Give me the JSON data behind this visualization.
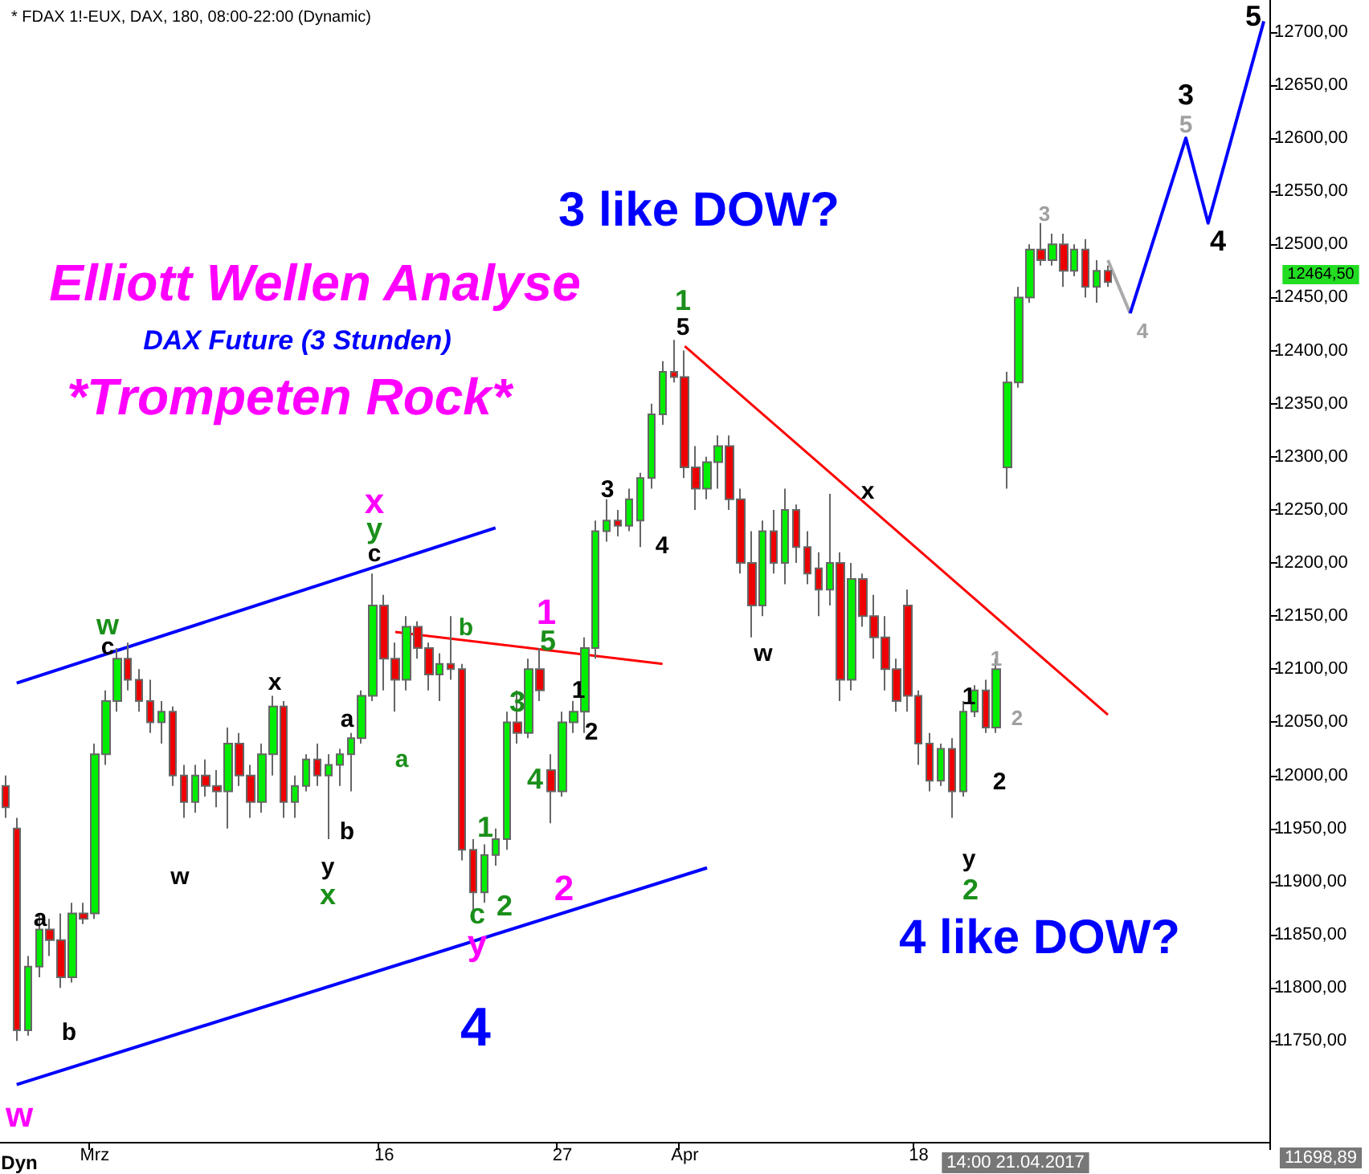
{
  "chart_data": {
    "type": "candlestick",
    "title": "* FDAX 1!-EUX, DAX, 180, 08:00-22:00 (Dynamic)",
    "categories": [
      null,
      null,
      null,
      null,
      null,
      null,
      null,
      null,
      "Mrz",
      null,
      null,
      null,
      null,
      null,
      null,
      null,
      null,
      null,
      null,
      null,
      null,
      null,
      null,
      null,
      null,
      null,
      null,
      null,
      null,
      null,
      null,
      null,
      null,
      null,
      "16",
      null,
      null,
      null,
      null,
      null,
      null,
      null,
      null,
      null,
      null,
      null,
      null,
      null,
      null,
      null,
      "27",
      null,
      null,
      null,
      null,
      null,
      null,
      null,
      null,
      null,
      null,
      "Apr",
      null,
      null,
      null,
      null,
      null,
      null,
      null,
      null,
      null,
      null,
      null,
      null,
      null,
      null,
      null,
      null,
      null,
      null,
      null,
      null,
      "18",
      null,
      null,
      null,
      null,
      null,
      null,
      null,
      null,
      null,
      null,
      null,
      null,
      null,
      null,
      null,
      null,
      null,
      null,
      null,
      null,
      null,
      null,
      null,
      null,
      null,
      null,
      null,
      null,
      null,
      null,
      null
    ],
    "ohlc": [
      [
        11990,
        12000,
        11960,
        11970
      ],
      [
        11950,
        11960,
        11750,
        11760
      ],
      [
        11760,
        11830,
        11755,
        11820
      ],
      [
        11820,
        11870,
        11810,
        11855
      ],
      [
        11855,
        11865,
        11830,
        11845
      ],
      [
        11845,
        11870,
        11800,
        11810
      ],
      [
        11810,
        11880,
        11805,
        11870
      ],
      [
        11870,
        11880,
        11860,
        11865
      ],
      [
        11870,
        12030,
        11865,
        12020
      ],
      [
        12020,
        12080,
        12010,
        12070
      ],
      [
        12070,
        12120,
        12060,
        12110
      ],
      [
        12110,
        12125,
        12080,
        12090
      ],
      [
        12090,
        12100,
        12060,
        12070
      ],
      [
        12070,
        12090,
        12040,
        12050
      ],
      [
        12050,
        12070,
        12030,
        12060
      ],
      [
        12060,
        12065,
        11990,
        12000
      ],
      [
        12000,
        12010,
        11960,
        11975
      ],
      [
        11975,
        12010,
        11965,
        12000
      ],
      [
        12000,
        12015,
        11980,
        11990
      ],
      [
        11990,
        12005,
        11970,
        11985
      ],
      [
        11985,
        12045,
        11950,
        12030
      ],
      [
        12030,
        12040,
        11990,
        12000
      ],
      [
        12000,
        12010,
        11960,
        11975
      ],
      [
        11975,
        12030,
        11965,
        12020
      ],
      [
        12020,
        12075,
        12000,
        12065
      ],
      [
        12065,
        12070,
        11960,
        11975
      ],
      [
        11975,
        12000,
        11960,
        11990
      ],
      [
        11990,
        12020,
        11985,
        12015
      ],
      [
        12015,
        12030,
        11990,
        12000
      ],
      [
        12000,
        12020,
        11940,
        12010
      ],
      [
        12010,
        12025,
        11990,
        12020
      ],
      [
        12020,
        12040,
        11985,
        12035
      ],
      [
        12035,
        12080,
        12030,
        12075
      ],
      [
        12075,
        12190,
        12070,
        12160
      ],
      [
        12160,
        12170,
        12080,
        12110
      ],
      [
        12110,
        12125,
        12060,
        12090
      ],
      [
        12090,
        12150,
        12080,
        12140
      ],
      [
        12140,
        12145,
        12110,
        12120
      ],
      [
        12120,
        12125,
        12080,
        12095
      ],
      [
        12095,
        12115,
        12070,
        12105
      ],
      [
        12105,
        12150,
        12090,
        12100
      ],
      [
        12100,
        12105,
        11920,
        11930
      ],
      [
        11930,
        11940,
        11870,
        11890
      ],
      [
        11890,
        11935,
        11880,
        11925
      ],
      [
        11925,
        11950,
        11915,
        11940
      ],
      [
        11940,
        12060,
        11930,
        12050
      ],
      [
        12050,
        12080,
        12030,
        12040
      ],
      [
        12040,
        12110,
        12035,
        12100
      ],
      [
        12100,
        12120,
        12070,
        12080
      ],
      [
        12005,
        12020,
        11955,
        11985
      ],
      [
        11985,
        12060,
        11980,
        12050
      ],
      [
        12050,
        12070,
        12040,
        12060
      ],
      [
        12060,
        12130,
        12040,
        12120
      ],
      [
        12120,
        12240,
        12110,
        12230
      ],
      [
        12230,
        12260,
        12220,
        12240
      ],
      [
        12240,
        12250,
        12225,
        12235
      ],
      [
        12235,
        12270,
        12230,
        12260
      ],
      [
        12240,
        12285,
        12215,
        12280
      ],
      [
        12280,
        12350,
        12270,
        12340
      ],
      [
        12340,
        12390,
        12330,
        12380
      ],
      [
        12380,
        12410,
        12370,
        12375
      ],
      [
        12375,
        12400,
        12280,
        12290
      ],
      [
        12290,
        12310,
        12250,
        12270
      ],
      [
        12270,
        12300,
        12260,
        12295
      ],
      [
        12295,
        12320,
        12270,
        12310
      ],
      [
        12310,
        12320,
        12250,
        12260
      ],
      [
        12260,
        12270,
        12190,
        12200
      ],
      [
        12200,
        12230,
        12130,
        12160
      ],
      [
        12160,
        12240,
        12150,
        12230
      ],
      [
        12230,
        12250,
        12190,
        12200
      ],
      [
        12200,
        12270,
        12180,
        12250
      ],
      [
        12250,
        12255,
        12200,
        12215
      ],
      [
        12215,
        12230,
        12180,
        12190
      ],
      [
        12195,
        12210,
        12150,
        12175
      ],
      [
        12175,
        12265,
        12160,
        12200
      ],
      [
        12200,
        12210,
        12070,
        12090
      ],
      [
        12090,
        12200,
        12080,
        12185
      ],
      [
        12185,
        12190,
        12140,
        12150
      ],
      [
        12150,
        12170,
        12110,
        12130
      ],
      [
        12130,
        12150,
        12080,
        12100
      ],
      [
        12100,
        12110,
        12060,
        12070
      ],
      [
        12160,
        12175,
        12060,
        12075
      ],
      [
        12075,
        12080,
        12010,
        12030
      ],
      [
        12030,
        12040,
        11985,
        11995
      ],
      [
        11995,
        12030,
        11990,
        12025
      ],
      [
        12025,
        12035,
        11960,
        11985
      ],
      [
        11985,
        12070,
        11980,
        12060
      ],
      [
        12060,
        12085,
        12055,
        12080
      ],
      [
        12080,
        12090,
        12040,
        12045
      ],
      [
        12045,
        12110,
        12040,
        12100
      ],
      [
        12290,
        12380,
        12270,
        12370
      ],
      [
        12370,
        12460,
        12365,
        12450
      ],
      [
        12450,
        12500,
        12445,
        12495
      ],
      [
        12495,
        12520,
        12480,
        12485
      ],
      [
        12485,
        12510,
        12480,
        12500
      ],
      [
        12500,
        12510,
        12460,
        12475
      ],
      [
        12475,
        12500,
        12470,
        12495
      ],
      [
        12495,
        12505,
        12450,
        12460
      ],
      [
        12460,
        12485,
        12445,
        12475
      ],
      [
        12475,
        12480,
        12460,
        12464.5
      ],
      null,
      null,
      null,
      null,
      null,
      null,
      null,
      null,
      null,
      null,
      null,
      null,
      null,
      null
    ],
    "series": [
      {
        "type": "line",
        "color": "#0000ff",
        "values": [
          null,
          11709,
          null,
          null,
          null,
          null,
          null,
          null,
          null,
          null,
          null,
          null,
          null,
          null,
          null,
          null,
          null,
          null,
          null,
          null,
          null,
          null,
          null,
          null,
          null,
          null,
          null,
          null,
          null,
          null,
          null,
          null,
          null,
          null,
          null,
          null,
          null,
          null,
          null,
          null,
          null,
          null,
          null,
          null,
          null,
          null,
          null,
          null,
          null,
          null,
          null,
          null,
          null,
          null,
          null,
          null,
          null,
          null,
          null,
          null,
          null,
          null,
          null,
          11913,
          null,
          null,
          null,
          null,
          null,
          null,
          null,
          null,
          null,
          null,
          null,
          null,
          null,
          null,
          null,
          null,
          null,
          null,
          null,
          null,
          null,
          null,
          null,
          null,
          null,
          null,
          null,
          null,
          null,
          null,
          null,
          null,
          null,
          null,
          null,
          null,
          null,
          null,
          null,
          null,
          null,
          null,
          null,
          null,
          null,
          null,
          null,
          null,
          null,
          null
        ]
      },
      {
        "type": "line",
        "color": "#0000ff",
        "values": [
          null,
          12087,
          null,
          null,
          null,
          null,
          null,
          null,
          null,
          null,
          null,
          null,
          null,
          null,
          null,
          null,
          null,
          null,
          null,
          null,
          null,
          null,
          null,
          null,
          null,
          null,
          null,
          null,
          null,
          null,
          null,
          null,
          null,
          null,
          null,
          null,
          null,
          null,
          null,
          null,
          null,
          null,
          null,
          null,
          12233,
          null,
          null,
          null,
          null,
          null,
          null,
          null,
          null,
          null,
          null,
          null,
          null,
          null,
          null,
          null,
          null,
          null,
          null,
          null,
          null,
          null,
          null,
          null,
          null,
          null,
          null,
          null,
          null,
          null,
          null,
          null,
          null,
          null,
          null,
          null,
          null,
          null,
          null,
          null,
          null,
          null,
          null,
          null,
          null,
          null,
          null,
          null,
          null,
          null,
          null,
          null,
          null,
          null,
          null,
          null,
          null,
          null,
          null,
          null,
          null,
          null,
          null,
          null,
          null,
          null,
          null,
          null,
          null,
          null
        ]
      },
      {
        "type": "line",
        "color": "#ff0000",
        "values": [
          null,
          null,
          null,
          null,
          null,
          null,
          null,
          null,
          null,
          null,
          null,
          null,
          null,
          null,
          null,
          null,
          null,
          null,
          null,
          null,
          null,
          null,
          null,
          null,
          null,
          null,
          null,
          null,
          null,
          null,
          null,
          null,
          null,
          null,
          null,
          12135,
          null,
          null,
          null,
          null,
          null,
          null,
          null,
          null,
          null,
          null,
          null,
          null,
          null,
          null,
          null,
          null,
          null,
          null,
          null,
          null,
          null,
          null,
          null,
          12105,
          null,
          null,
          null,
          null,
          null,
          null,
          null,
          null,
          null,
          null,
          null,
          null,
          null,
          null,
          null,
          null,
          null,
          null,
          null,
          null,
          null,
          null,
          null,
          null,
          null,
          null,
          null,
          null,
          null,
          null,
          null,
          null,
          null,
          null,
          null,
          null,
          null,
          null,
          null,
          null,
          null,
          null,
          null,
          null,
          null,
          null,
          null,
          null,
          null,
          null,
          null,
          null,
          null,
          null
        ]
      },
      {
        "type": "line",
        "color": "#ff0000",
        "values": [
          null,
          null,
          null,
          null,
          null,
          null,
          null,
          null,
          null,
          null,
          null,
          null,
          null,
          null,
          null,
          null,
          null,
          null,
          null,
          null,
          null,
          null,
          null,
          null,
          null,
          null,
          null,
          null,
          null,
          null,
          null,
          null,
          null,
          null,
          null,
          null,
          null,
          null,
          null,
          null,
          null,
          null,
          null,
          null,
          null,
          null,
          null,
          null,
          null,
          null,
          null,
          null,
          null,
          null,
          null,
          null,
          null,
          null,
          null,
          null,
          null,
          12404,
          null,
          null,
          null,
          null,
          null,
          null,
          null,
          null,
          null,
          null,
          null,
          null,
          null,
          null,
          null,
          null,
          null,
          null,
          null,
          null,
          null,
          null,
          null,
          null,
          null,
          null,
          null,
          null,
          null,
          null,
          null,
          null,
          null,
          null,
          null,
          null,
          null,
          12057,
          null,
          null,
          null,
          null,
          null,
          null,
          null,
          null,
          null,
          null,
          null,
          null,
          null,
          null
        ]
      },
      {
        "type": "line",
        "color": "#aaaaaa",
        "values": [
          null,
          null,
          null,
          null,
          null,
          null,
          null,
          null,
          null,
          null,
          null,
          null,
          null,
          null,
          null,
          null,
          null,
          null,
          null,
          null,
          null,
          null,
          null,
          null,
          null,
          null,
          null,
          null,
          null,
          null,
          null,
          null,
          null,
          null,
          null,
          null,
          null,
          null,
          null,
          null,
          null,
          null,
          null,
          null,
          null,
          null,
          null,
          null,
          null,
          null,
          null,
          null,
          null,
          null,
          null,
          null,
          null,
          null,
          null,
          null,
          null,
          null,
          null,
          null,
          null,
          null,
          null,
          null,
          null,
          null,
          null,
          null,
          null,
          null,
          null,
          null,
          null,
          null,
          null,
          null,
          null,
          null,
          null,
          null,
          null,
          null,
          null,
          null,
          null,
          null,
          null,
          null,
          null,
          null,
          null,
          null,
          null,
          null,
          null,
          12485,
          null,
          12435,
          null,
          null,
          null,
          null,
          null,
          null,
          null,
          null,
          null,
          null,
          null,
          null
        ]
      },
      {
        "type": "line",
        "color": "#0000ff",
        "values": [
          null,
          null,
          null,
          null,
          null,
          null,
          null,
          null,
          null,
          null,
          null,
          null,
          null,
          null,
          null,
          null,
          null,
          null,
          null,
          null,
          null,
          null,
          null,
          null,
          null,
          null,
          null,
          null,
          null,
          null,
          null,
          null,
          null,
          null,
          null,
          null,
          null,
          null,
          null,
          null,
          null,
          null,
          null,
          null,
          null,
          null,
          null,
          null,
          null,
          null,
          null,
          null,
          null,
          null,
          null,
          null,
          null,
          null,
          null,
          null,
          null,
          null,
          null,
          null,
          null,
          null,
          null,
          null,
          null,
          null,
          null,
          null,
          null,
          null,
          null,
          null,
          null,
          null,
          null,
          null,
          null,
          null,
          null,
          null,
          null,
          null,
          null,
          null,
          null,
          null,
          null,
          null,
          null,
          null,
          null,
          null,
          null,
          null,
          null,
          null,
          null,
          12435,
          null,
          null,
          null,
          null,
          12600,
          null,
          12520,
          null,
          null,
          null,
          null,
          12710
        ]
      }
    ],
    "ylim": [
      11655,
      12730
    ],
    "yticks": [
      {
        "value": 11750,
        "label": "11750,00"
      },
      {
        "value": 11800,
        "label": "11800,00"
      },
      {
        "value": 11850,
        "label": "11850,00"
      },
      {
        "value": 11900,
        "label": "11900,00"
      },
      {
        "value": 11950,
        "label": "11950,00"
      },
      {
        "value": 12000,
        "label": "12000,00"
      },
      {
        "value": 12050,
        "label": "12050,00"
      },
      {
        "value": 12100,
        "label": "12100,00"
      },
      {
        "value": 12150,
        "label": "12150,00"
      },
      {
        "value": 12200,
        "label": "12200,00"
      },
      {
        "value": 12250,
        "label": "12250,00"
      },
      {
        "value": 12300,
        "label": "12300,00"
      },
      {
        "value": 12350,
        "label": "12350,00"
      },
      {
        "value": 12400,
        "label": "12400,00"
      },
      {
        "value": 12450,
        "label": "12450,00"
      },
      {
        "value": 12500,
        "label": "12500,00"
      },
      {
        "value": 12550,
        "label": "12550,00"
      },
      {
        "value": 12600,
        "label": "12600,00"
      },
      {
        "value": 12650,
        "label": "12650,00"
      },
      {
        "value": 12700,
        "label": "12700,00"
      }
    ],
    "grid": false,
    "annotations": [
      "Elliott Wellen Analyse",
      "DAX Future (3 Stunden)",
      "*Trompeten Rock*",
      "3 like DOW?",
      "4 like DOW?",
      "w",
      "a",
      "b",
      "w",
      "c",
      "w",
      "x",
      "a",
      "b",
      "y",
      "x",
      "x",
      "y",
      "c",
      "a",
      "b",
      "c",
      "y",
      "4",
      "1",
      "2",
      "3",
      "4",
      "5",
      "1",
      "2",
      "1",
      "2",
      "3",
      "4",
      "1",
      "5",
      "w",
      "x",
      "1",
      "2",
      "1",
      "2",
      "y",
      "2",
      "3",
      "4",
      "3",
      "5",
      "4",
      "5",
      "12464,50",
      "11698,89",
      "14:00 21.04.2017",
      "Dyn"
    ]
  }
}
